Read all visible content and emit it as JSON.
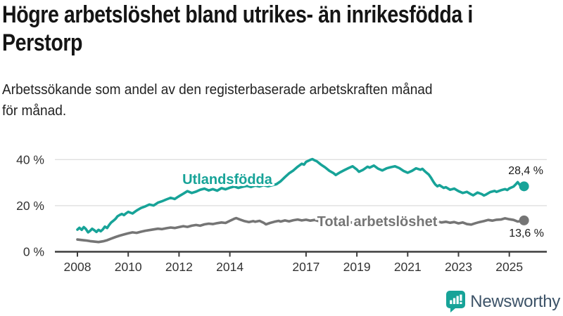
{
  "title": {
    "line1": "Högre arbetslöshet bland utrikes- än inrikesfödda i",
    "line2": "Perstorp"
  },
  "subtitle": {
    "line1": "Arbetssökande som andel av den registerbaserade arbetskraften månad",
    "line2": "för månad."
  },
  "footer": {
    "brand": "Newsworthy"
  },
  "colors": {
    "teal": "#17a398",
    "gray": "#757575",
    "axis": "#3d3d3d",
    "grid": "#dcdcdc",
    "logo_text": "#3d5368"
  },
  "chart_data": {
    "type": "line",
    "title": "Högre arbetslöshet bland utrikes- än inrikesfödda i Perstorp",
    "subtitle": "Arbetssökande som andel av den registerbaserade arbetskraften månad för månad.",
    "x_axis": {
      "min": 2008,
      "max": 2025.75,
      "tick_years": [
        2008,
        2010,
        2012,
        2014,
        2017,
        2019,
        2021,
        2023,
        2025
      ],
      "tick_labels": [
        "2008",
        "2010",
        "2012",
        "2014",
        "2017",
        "2019",
        "2021",
        "2023",
        "2025"
      ]
    },
    "y_axis": {
      "unit": "%",
      "min": 0,
      "max": 43,
      "ticks": [
        {
          "value": 0,
          "label": "0 %"
        },
        {
          "value": 20,
          "label": "20 %"
        },
        {
          "value": 40,
          "label": "40 %"
        }
      ],
      "grid": true
    },
    "legend_position": "inline-labels",
    "series": [
      {
        "name": "Utlandsfödda",
        "color": "#17a398",
        "end_value": 28.4,
        "end_label": "28,4 %",
        "points": [
          [
            2008.0,
            9.6
          ],
          [
            2008.08,
            10.4
          ],
          [
            2008.17,
            9.5
          ],
          [
            2008.25,
            10.7
          ],
          [
            2008.33,
            9.9
          ],
          [
            2008.42,
            8.4
          ],
          [
            2008.5,
            9.1
          ],
          [
            2008.58,
            10.0
          ],
          [
            2008.67,
            9.3
          ],
          [
            2008.75,
            8.6
          ],
          [
            2008.83,
            9.5
          ],
          [
            2008.92,
            8.9
          ],
          [
            2009.0,
            9.7
          ],
          [
            2009.08,
            10.9
          ],
          [
            2009.17,
            10.3
          ],
          [
            2009.25,
            11.6
          ],
          [
            2009.33,
            12.7
          ],
          [
            2009.42,
            13.5
          ],
          [
            2009.5,
            14.3
          ],
          [
            2009.58,
            15.4
          ],
          [
            2009.67,
            16.0
          ],
          [
            2009.75,
            16.4
          ],
          [
            2009.83,
            15.9
          ],
          [
            2009.92,
            16.7
          ],
          [
            2010.0,
            17.3
          ],
          [
            2010.17,
            16.6
          ],
          [
            2010.33,
            17.9
          ],
          [
            2010.5,
            19.0
          ],
          [
            2010.67,
            19.7
          ],
          [
            2010.83,
            20.5
          ],
          [
            2011.0,
            20.1
          ],
          [
            2011.17,
            21.3
          ],
          [
            2011.33,
            21.9
          ],
          [
            2011.5,
            22.7
          ],
          [
            2011.67,
            23.4
          ],
          [
            2011.83,
            22.9
          ],
          [
            2012.0,
            24.1
          ],
          [
            2012.17,
            25.2
          ],
          [
            2012.33,
            26.3
          ],
          [
            2012.5,
            25.5
          ],
          [
            2012.67,
            26.1
          ],
          [
            2012.83,
            26.9
          ],
          [
            2013.0,
            27.4
          ],
          [
            2013.17,
            26.6
          ],
          [
            2013.33,
            27.2
          ],
          [
            2013.5,
            26.5
          ],
          [
            2013.67,
            27.6
          ],
          [
            2013.83,
            27.1
          ],
          [
            2014.0,
            27.8
          ],
          [
            2014.17,
            28.3
          ],
          [
            2014.33,
            27.7
          ],
          [
            2014.5,
            28.2
          ],
          [
            2014.67,
            28.6
          ],
          [
            2014.83,
            28.1
          ],
          [
            2015.0,
            28.7
          ],
          [
            2015.17,
            28.3
          ],
          [
            2015.33,
            28.9
          ],
          [
            2015.5,
            28.4
          ],
          [
            2015.67,
            28.9
          ],
          [
            2015.83,
            29.3
          ],
          [
            2016.0,
            30.6
          ],
          [
            2016.17,
            32.4
          ],
          [
            2016.33,
            34.0
          ],
          [
            2016.5,
            35.3
          ],
          [
            2016.67,
            36.9
          ],
          [
            2016.83,
            38.2
          ],
          [
            2016.92,
            37.8
          ],
          [
            2017.0,
            39.0
          ],
          [
            2017.17,
            39.9
          ],
          [
            2017.25,
            40.2
          ],
          [
            2017.33,
            39.7
          ],
          [
            2017.42,
            39.3
          ],
          [
            2017.58,
            37.9
          ],
          [
            2017.75,
            36.6
          ],
          [
            2017.92,
            35.1
          ],
          [
            2018.08,
            34.1
          ],
          [
            2018.17,
            33.3
          ],
          [
            2018.33,
            34.4
          ],
          [
            2018.5,
            35.4
          ],
          [
            2018.67,
            36.3
          ],
          [
            2018.83,
            37.1
          ],
          [
            2019.0,
            35.7
          ],
          [
            2019.08,
            34.7
          ],
          [
            2019.25,
            35.6
          ],
          [
            2019.42,
            36.9
          ],
          [
            2019.5,
            36.5
          ],
          [
            2019.67,
            37.4
          ],
          [
            2019.83,
            36.1
          ],
          [
            2020.0,
            35.3
          ],
          [
            2020.17,
            36.2
          ],
          [
            2020.33,
            36.7
          ],
          [
            2020.5,
            37.1
          ],
          [
            2020.67,
            36.3
          ],
          [
            2020.83,
            35.1
          ],
          [
            2021.0,
            34.3
          ],
          [
            2021.17,
            35.1
          ],
          [
            2021.33,
            36.2
          ],
          [
            2021.5,
            35.6
          ],
          [
            2021.58,
            36.0
          ],
          [
            2021.67,
            35.0
          ],
          [
            2021.83,
            33.5
          ],
          [
            2021.92,
            32.1
          ],
          [
            2022.0,
            30.6
          ],
          [
            2022.08,
            29.3
          ],
          [
            2022.17,
            28.4
          ],
          [
            2022.25,
            28.9
          ],
          [
            2022.42,
            27.7
          ],
          [
            2022.5,
            28.0
          ],
          [
            2022.67,
            26.9
          ],
          [
            2022.83,
            27.4
          ],
          [
            2023.0,
            26.3
          ],
          [
            2023.17,
            25.5
          ],
          [
            2023.33,
            26.0
          ],
          [
            2023.5,
            24.9
          ],
          [
            2023.58,
            24.5
          ],
          [
            2023.75,
            25.7
          ],
          [
            2023.92,
            25.0
          ],
          [
            2024.0,
            24.4
          ],
          [
            2024.08,
            24.8
          ],
          [
            2024.25,
            25.9
          ],
          [
            2024.42,
            26.4
          ],
          [
            2024.5,
            26.0
          ],
          [
            2024.67,
            26.7
          ],
          [
            2024.83,
            27.2
          ],
          [
            2024.92,
            26.8
          ],
          [
            2025.0,
            27.5
          ],
          [
            2025.17,
            28.3
          ],
          [
            2025.25,
            29.2
          ],
          [
            2025.33,
            30.2
          ],
          [
            2025.42,
            28.9
          ],
          [
            2025.5,
            28.0
          ],
          [
            2025.58,
            28.4
          ]
        ]
      },
      {
        "name": "Total arbetslöshet",
        "color": "#757575",
        "end_value": 13.6,
        "end_label": "13,6 %",
        "points": [
          [
            2008.0,
            5.3
          ],
          [
            2008.17,
            5.1
          ],
          [
            2008.33,
            4.9
          ],
          [
            2008.5,
            4.6
          ],
          [
            2008.67,
            4.4
          ],
          [
            2008.83,
            4.2
          ],
          [
            2009.0,
            4.5
          ],
          [
            2009.17,
            5.0
          ],
          [
            2009.33,
            5.7
          ],
          [
            2009.5,
            6.4
          ],
          [
            2009.67,
            7.0
          ],
          [
            2009.83,
            7.5
          ],
          [
            2010.0,
            8.0
          ],
          [
            2010.17,
            8.4
          ],
          [
            2010.33,
            8.2
          ],
          [
            2010.5,
            8.7
          ],
          [
            2010.67,
            9.1
          ],
          [
            2010.83,
            9.4
          ],
          [
            2011.0,
            9.7
          ],
          [
            2011.17,
            10.0
          ],
          [
            2011.33,
            9.8
          ],
          [
            2011.5,
            10.2
          ],
          [
            2011.67,
            10.5
          ],
          [
            2011.83,
            10.3
          ],
          [
            2012.0,
            10.7
          ],
          [
            2012.17,
            11.1
          ],
          [
            2012.33,
            10.8
          ],
          [
            2012.5,
            11.3
          ],
          [
            2012.67,
            11.6
          ],
          [
            2012.83,
            11.3
          ],
          [
            2013.0,
            11.9
          ],
          [
            2013.17,
            12.2
          ],
          [
            2013.33,
            12.0
          ],
          [
            2013.5,
            12.4
          ],
          [
            2013.67,
            12.7
          ],
          [
            2013.83,
            12.5
          ],
          [
            2014.0,
            13.4
          ],
          [
            2014.17,
            14.3
          ],
          [
            2014.25,
            14.6
          ],
          [
            2014.42,
            13.9
          ],
          [
            2014.58,
            13.3
          ],
          [
            2014.75,
            12.9
          ],
          [
            2014.92,
            13.3
          ],
          [
            2015.0,
            13.0
          ],
          [
            2015.17,
            13.4
          ],
          [
            2015.33,
            12.6
          ],
          [
            2015.42,
            11.9
          ],
          [
            2015.58,
            12.5
          ],
          [
            2015.75,
            13.0
          ],
          [
            2015.92,
            13.4
          ],
          [
            2016.0,
            13.1
          ],
          [
            2016.17,
            13.6
          ],
          [
            2016.33,
            13.2
          ],
          [
            2016.5,
            13.7
          ],
          [
            2016.67,
            14.0
          ],
          [
            2016.83,
            13.6
          ],
          [
            2017.0,
            13.9
          ],
          [
            2017.17,
            13.5
          ],
          [
            2017.33,
            13.8
          ],
          [
            2017.5,
            13.3
          ],
          [
            2017.67,
            13.0
          ],
          [
            2017.83,
            13.4
          ],
          [
            2018.0,
            13.1
          ],
          [
            2018.17,
            12.8
          ],
          [
            2018.33,
            13.2
          ],
          [
            2018.5,
            12.7
          ],
          [
            2018.67,
            13.0
          ],
          [
            2018.83,
            12.6
          ],
          [
            2019.0,
            12.9
          ],
          [
            2019.17,
            13.3
          ],
          [
            2019.33,
            12.8
          ],
          [
            2019.5,
            13.1
          ],
          [
            2019.67,
            13.5
          ],
          [
            2019.83,
            13.2
          ],
          [
            2020.0,
            13.6
          ],
          [
            2020.17,
            14.0
          ],
          [
            2020.33,
            13.7
          ],
          [
            2020.5,
            14.1
          ],
          [
            2020.67,
            13.8
          ],
          [
            2020.83,
            13.4
          ],
          [
            2021.0,
            13.7
          ],
          [
            2021.17,
            13.3
          ],
          [
            2021.33,
            13.6
          ],
          [
            2021.5,
            13.1
          ],
          [
            2021.67,
            12.8
          ],
          [
            2021.83,
            13.2
          ],
          [
            2022.0,
            12.8
          ],
          [
            2022.17,
            13.1
          ],
          [
            2022.33,
            12.7
          ],
          [
            2022.5,
            13.0
          ],
          [
            2022.67,
            12.6
          ],
          [
            2022.83,
            12.9
          ],
          [
            2023.0,
            12.3
          ],
          [
            2023.17,
            12.7
          ],
          [
            2023.33,
            12.0
          ],
          [
            2023.5,
            11.8
          ],
          [
            2023.67,
            12.4
          ],
          [
            2023.83,
            12.9
          ],
          [
            2024.0,
            13.3
          ],
          [
            2024.17,
            13.8
          ],
          [
            2024.33,
            13.5
          ],
          [
            2024.5,
            13.9
          ],
          [
            2024.67,
            14.0
          ],
          [
            2024.83,
            14.5
          ],
          [
            2025.0,
            14.1
          ],
          [
            2025.17,
            13.8
          ],
          [
            2025.33,
            13.1
          ],
          [
            2025.5,
            13.4
          ],
          [
            2025.58,
            13.6
          ]
        ]
      }
    ]
  }
}
